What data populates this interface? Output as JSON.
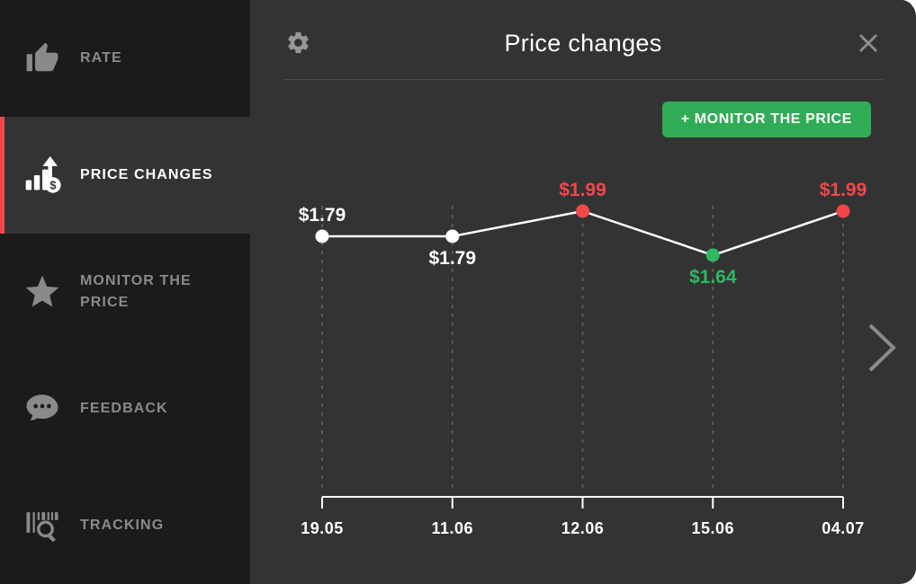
{
  "colors": {
    "accent_red": "#f4474c",
    "button_green": "#31ac56",
    "panel_bg": "#333333",
    "sidebar_bg": "#1b1b1b",
    "inactive_gray": "#8a8a8a"
  },
  "sidebar": {
    "items": [
      {
        "label": "RATE",
        "icon": "thumb-up-icon",
        "active": false
      },
      {
        "label": "PRICE CHANGES",
        "icon": "price-changes-icon",
        "active": true
      },
      {
        "label": "MONITOR THE PRICE",
        "icon": "star-icon",
        "active": false
      },
      {
        "label": "FEEDBACK",
        "icon": "feedback-bubble-icon",
        "active": false
      },
      {
        "label": "TRACKING",
        "icon": "barcode-search-icon",
        "active": false
      }
    ]
  },
  "header": {
    "title": "Price changes",
    "settings_icon": "gear-icon",
    "close_icon": "close-icon"
  },
  "toolbar": {
    "monitor_button_label": "+ MONITOR THE PRICE"
  },
  "nav": {
    "next_icon": "chevron-right-icon"
  },
  "chart_data": {
    "type": "line",
    "title": "Price changes",
    "x": [
      "19.05",
      "11.06",
      "12.06",
      "15.06",
      "04.07"
    ],
    "values": [
      1.79,
      1.79,
      1.99,
      1.64,
      1.99
    ],
    "point_labels": [
      "$1.79",
      "$1.79",
      "$1.99",
      "$1.64",
      "$1.99"
    ],
    "point_colors": [
      "white",
      "white",
      "red",
      "green",
      "red"
    ],
    "label_positions": [
      "above",
      "below",
      "above",
      "below",
      "above"
    ],
    "color_map": {
      "white": "#ffffff",
      "red": "#f1474c",
      "green": "#2db961"
    },
    "line_color": "#ffffff",
    "grid": "vertical-dashed",
    "gridline_color": "#5a5a5a",
    "axis_color": "#ffffff",
    "ylim": [
      1.6,
      2.05
    ],
    "legend": "none"
  }
}
